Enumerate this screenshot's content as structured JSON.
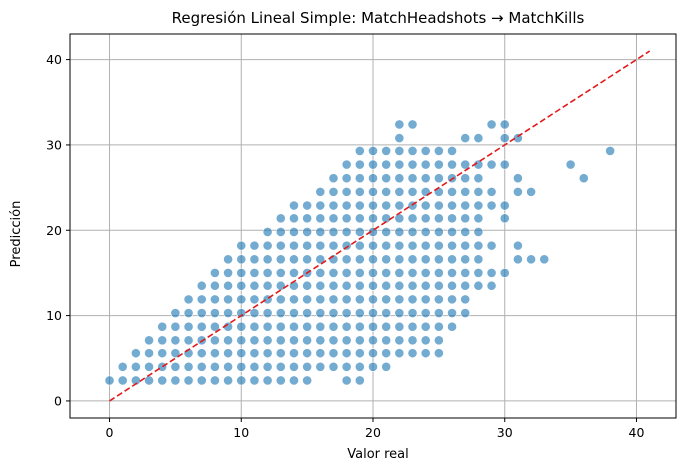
{
  "chart_data": {
    "type": "scatter",
    "title": "Regresión Lineal Simple: MatchHeadshots → MatchKills",
    "xlabel": "Valor real",
    "ylabel": "Predicción",
    "xlim": [
      -3,
      43
    ],
    "ylim": [
      -2,
      43
    ],
    "xticks": [
      0,
      10,
      20,
      30,
      40
    ],
    "yticks": [
      0,
      10,
      20,
      30,
      40
    ],
    "grid": true,
    "colors": {
      "points": "#1f77b4",
      "reference_line": "#e31a1c",
      "grid": "#b0b0b0"
    },
    "prediction_levels": [
      2.4,
      4.0,
      5.6,
      7.1,
      8.7,
      10.3,
      11.9,
      13.5,
      15.0,
      16.6,
      18.2,
      19.8,
      21.4,
      22.9,
      24.5,
      26.1,
      27.7,
      29.3,
      30.8,
      32.4
    ],
    "reference_line": {
      "style": "dashed",
      "x": [
        0,
        41
      ],
      "y": [
        0,
        41
      ]
    },
    "columns": [
      {
        "x": 0,
        "levels": [
          2.4
        ]
      },
      {
        "x": 1,
        "levels": [
          2.4,
          4.0
        ]
      },
      {
        "x": 2,
        "levels": [
          2.4,
          4.0,
          5.6
        ]
      },
      {
        "x": 3,
        "levels": [
          2.4,
          4.0,
          5.6,
          7.1
        ]
      },
      {
        "x": 4,
        "levels": [
          2.4,
          4.0,
          5.6,
          7.1,
          8.7
        ]
      },
      {
        "x": 5,
        "levels": [
          2.4,
          4.0,
          5.6,
          7.1,
          8.7,
          10.3
        ]
      },
      {
        "x": 6,
        "levels": [
          2.4,
          4.0,
          5.6,
          7.1,
          8.7,
          10.3,
          11.9
        ]
      },
      {
        "x": 7,
        "levels": [
          2.4,
          4.0,
          5.6,
          7.1,
          8.7,
          10.3,
          11.9,
          13.5
        ]
      },
      {
        "x": 8,
        "levels": [
          2.4,
          4.0,
          5.6,
          7.1,
          8.7,
          10.3,
          11.9,
          13.5,
          15.0
        ]
      },
      {
        "x": 9,
        "levels": [
          2.4,
          4.0,
          5.6,
          7.1,
          8.7,
          10.3,
          11.9,
          13.5,
          15.0,
          16.6
        ]
      },
      {
        "x": 10,
        "levels": [
          2.4,
          4.0,
          5.6,
          7.1,
          8.7,
          10.3,
          11.9,
          13.5,
          15.0,
          16.6,
          18.2
        ]
      },
      {
        "x": 11,
        "levels": [
          2.4,
          4.0,
          5.6,
          7.1,
          8.7,
          10.3,
          11.9,
          13.5,
          15.0,
          16.6,
          18.2
        ]
      },
      {
        "x": 12,
        "levels": [
          2.4,
          4.0,
          5.6,
          7.1,
          8.7,
          10.3,
          11.9,
          13.5,
          15.0,
          16.6,
          18.2,
          19.8
        ]
      },
      {
        "x": 13,
        "levels": [
          2.4,
          4.0,
          5.6,
          7.1,
          8.7,
          10.3,
          11.9,
          13.5,
          15.0,
          16.6,
          18.2,
          19.8,
          21.4
        ]
      },
      {
        "x": 14,
        "levels": [
          2.4,
          4.0,
          5.6,
          7.1,
          8.7,
          10.3,
          11.9,
          13.5,
          15.0,
          16.6,
          18.2,
          19.8,
          21.4,
          22.9
        ]
      },
      {
        "x": 15,
        "levels": [
          2.4,
          4.0,
          5.6,
          7.1,
          8.7,
          10.3,
          11.9,
          13.5,
          15.0,
          16.6,
          18.2,
          19.8,
          21.4,
          22.9
        ]
      },
      {
        "x": 16,
        "levels": [
          4.0,
          5.6,
          7.1,
          8.7,
          10.3,
          11.9,
          13.5,
          15.0,
          16.6,
          18.2,
          19.8,
          21.4,
          22.9,
          24.5
        ]
      },
      {
        "x": 17,
        "levels": [
          4.0,
          5.6,
          7.1,
          8.7,
          10.3,
          11.9,
          13.5,
          15.0,
          16.6,
          18.2,
          19.8,
          21.4,
          22.9,
          24.5,
          26.1
        ]
      },
      {
        "x": 18,
        "levels": [
          2.4,
          4.0,
          5.6,
          7.1,
          8.7,
          10.3,
          11.9,
          13.5,
          15.0,
          16.6,
          18.2,
          19.8,
          21.4,
          22.9,
          24.5,
          26.1,
          27.7
        ]
      },
      {
        "x": 19,
        "levels": [
          2.4,
          4.0,
          5.6,
          7.1,
          8.7,
          10.3,
          11.9,
          13.5,
          15.0,
          16.6,
          18.2,
          19.8,
          21.4,
          22.9,
          24.5,
          26.1,
          27.7,
          29.3
        ]
      },
      {
        "x": 20,
        "levels": [
          4.0,
          5.6,
          7.1,
          8.7,
          10.3,
          11.9,
          13.5,
          15.0,
          16.6,
          18.2,
          19.8,
          21.4,
          22.9,
          24.5,
          26.1,
          27.7,
          29.3
        ]
      },
      {
        "x": 21,
        "levels": [
          4.0,
          5.6,
          7.1,
          8.7,
          10.3,
          11.9,
          13.5,
          15.0,
          16.6,
          18.2,
          19.8,
          21.4,
          22.9,
          24.5,
          26.1,
          27.7,
          29.3
        ]
      },
      {
        "x": 22,
        "levels": [
          5.6,
          7.1,
          8.7,
          10.3,
          11.9,
          13.5,
          15.0,
          16.6,
          18.2,
          19.8,
          21.4,
          22.9,
          24.5,
          26.1,
          27.7,
          29.3,
          30.8,
          32.4
        ]
      },
      {
        "x": 23,
        "levels": [
          5.6,
          7.1,
          8.7,
          10.3,
          11.9,
          13.5,
          15.0,
          16.6,
          18.2,
          19.8,
          21.4,
          22.9,
          24.5,
          26.1,
          27.7,
          29.3,
          32.4
        ]
      },
      {
        "x": 24,
        "levels": [
          5.6,
          7.1,
          8.7,
          10.3,
          11.9,
          13.5,
          15.0,
          16.6,
          18.2,
          19.8,
          21.4,
          22.9,
          24.5,
          26.1,
          27.7,
          29.3
        ]
      },
      {
        "x": 25,
        "levels": [
          5.6,
          7.1,
          8.7,
          10.3,
          11.9,
          13.5,
          15.0,
          16.6,
          18.2,
          19.8,
          21.4,
          22.9,
          24.5,
          26.1,
          27.7,
          29.3
        ]
      },
      {
        "x": 26,
        "levels": [
          8.7,
          10.3,
          11.9,
          13.5,
          15.0,
          16.6,
          18.2,
          19.8,
          21.4,
          22.9,
          24.5,
          26.1,
          27.7,
          29.3
        ]
      },
      {
        "x": 27,
        "levels": [
          10.3,
          11.9,
          13.5,
          15.0,
          16.6,
          18.2,
          19.8,
          21.4,
          22.9,
          24.5,
          26.1,
          27.7,
          30.8
        ]
      },
      {
        "x": 28,
        "levels": [
          13.5,
          15.0,
          16.6,
          18.2,
          19.8,
          21.4,
          22.9,
          24.5,
          26.1,
          27.7,
          30.8
        ]
      },
      {
        "x": 29,
        "levels": [
          13.5,
          15.0,
          18.2,
          22.9,
          24.5,
          27.7,
          32.4
        ]
      },
      {
        "x": 30,
        "levels": [
          15.0,
          21.4,
          22.9,
          27.7,
          30.8,
          32.4
        ]
      },
      {
        "x": 31,
        "levels": [
          16.6,
          18.2,
          24.5,
          26.1,
          30.8
        ]
      },
      {
        "x": 32,
        "levels": [
          16.6,
          24.5
        ]
      },
      {
        "x": 33,
        "levels": [
          16.6
        ]
      },
      {
        "x": 35,
        "levels": [
          27.7
        ]
      },
      {
        "x": 36,
        "levels": [
          26.1
        ]
      },
      {
        "x": 38,
        "levels": [
          29.3
        ]
      }
    ]
  }
}
